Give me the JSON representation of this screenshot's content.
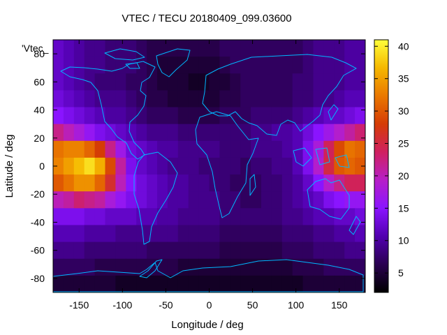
{
  "chart_data": {
    "type": "heatmap",
    "title": "VTEC / TECU 20180409_099.03600",
    "xlabel": "Longitude / deg",
    "ylabel": "Latitude / deg",
    "legend_label": "'Vtec_",
    "xlim": [
      -180,
      180
    ],
    "ylim": [
      -90,
      90
    ],
    "x_ticks": [
      -150,
      -100,
      -50,
      0,
      50,
      100,
      150
    ],
    "y_ticks": [
      -80,
      -60,
      -40,
      -20,
      0,
      20,
      40,
      60,
      80
    ],
    "colorbar": {
      "range": [
        2,
        41
      ],
      "ticks": [
        5,
        10,
        15,
        20,
        25,
        30,
        35,
        40
      ],
      "palette": [
        "#000000",
        "#2a0050",
        "#5200b0",
        "#8a14ff",
        "#b61fc8",
        "#d02060",
        "#d53c05",
        "#ea7800",
        "#f5b800",
        "#ffff3a"
      ]
    },
    "grid": {
      "lon_start": -180,
      "lat_start": 90,
      "step_deg": 12,
      "note": "values in TECU, rows from north (lat 90..78) to south",
      "values": [
        [
          12,
          11,
          10,
          9,
          9,
          8,
          8,
          8,
          7,
          6,
          6,
          6,
          6,
          6,
          6,
          6,
          7,
          7,
          7,
          7,
          7,
          7,
          7,
          7,
          8,
          9,
          9,
          9,
          10,
          10
        ],
        [
          12,
          11,
          10,
          9,
          9,
          8,
          8,
          8,
          7,
          6,
          5,
          5,
          5,
          5,
          5,
          5,
          6,
          7,
          7,
          7,
          7,
          7,
          7,
          7,
          8,
          9,
          9,
          9,
          10,
          10
        ],
        [
          12,
          11,
          10,
          9,
          8,
          8,
          8,
          7,
          7,
          6,
          5,
          5,
          5,
          4,
          4,
          5,
          5,
          6,
          7,
          7,
          7,
          7,
          7,
          8,
          8,
          9,
          9,
          9,
          10,
          10
        ],
        [
          13,
          12,
          11,
          10,
          9,
          9,
          9,
          8,
          7,
          6,
          6,
          5,
          5,
          5,
          5,
          5,
          6,
          6,
          7,
          7,
          7,
          7,
          7,
          8,
          8,
          9,
          9,
          10,
          11,
          11
        ],
        [
          15,
          14,
          13,
          12,
          11,
          10,
          10,
          9,
          8,
          7,
          7,
          7,
          6,
          6,
          6,
          6,
          7,
          7,
          7,
          8,
          8,
          8,
          8,
          9,
          10,
          11,
          12,
          12,
          13,
          14
        ],
        [
          22,
          20,
          18,
          16,
          14,
          13,
          12,
          11,
          10,
          9,
          9,
          9,
          8,
          8,
          8,
          8,
          8,
          8,
          8,
          9,
          9,
          10,
          10,
          11,
          13,
          15,
          17,
          19,
          21,
          23
        ],
        [
          32,
          33,
          33,
          31,
          28,
          22,
          17,
          13,
          12,
          11,
          10,
          10,
          9,
          9,
          9,
          9,
          8,
          8,
          8,
          9,
          9,
          9,
          10,
          11,
          14,
          18,
          24,
          29,
          32,
          31
        ],
        [
          33,
          35,
          37,
          39,
          36,
          29,
          21,
          14,
          12,
          11,
          10,
          9,
          9,
          9,
          8,
          8,
          8,
          8,
          7,
          8,
          8,
          9,
          9,
          11,
          14,
          19,
          25,
          30,
          31,
          30
        ],
        [
          30,
          32,
          34,
          34,
          31,
          26,
          20,
          15,
          13,
          12,
          11,
          10,
          10,
          9,
          9,
          8,
          8,
          7,
          7,
          7,
          8,
          8,
          9,
          10,
          12,
          15,
          19,
          22,
          24,
          24
        ],
        [
          20,
          21,
          23,
          22,
          21,
          18,
          16,
          14,
          13,
          12,
          11,
          10,
          10,
          9,
          9,
          9,
          8,
          8,
          7,
          7,
          8,
          8,
          9,
          10,
          11,
          12,
          14,
          15,
          16,
          16
        ],
        [
          14,
          14,
          14,
          13,
          13,
          12,
          12,
          12,
          11,
          11,
          10,
          10,
          9,
          9,
          9,
          9,
          8,
          8,
          8,
          8,
          8,
          8,
          9,
          9,
          10,
          11,
          11,
          12,
          12,
          13
        ],
        [
          11,
          11,
          11,
          10,
          10,
          10,
          9,
          9,
          9,
          9,
          9,
          9,
          8,
          8,
          8,
          8,
          7,
          7,
          7,
          7,
          7,
          7,
          8,
          8,
          8,
          9,
          9,
          10,
          10,
          11
        ],
        [
          9,
          9,
          9,
          8,
          8,
          8,
          8,
          8,
          8,
          7,
          7,
          7,
          7,
          7,
          7,
          7,
          6,
          6,
          6,
          6,
          6,
          6,
          7,
          7,
          7,
          8,
          8,
          8,
          9,
          9
        ],
        [
          7,
          7,
          7,
          7,
          6,
          6,
          6,
          6,
          6,
          6,
          6,
          6,
          5,
          5,
          5,
          5,
          5,
          5,
          5,
          5,
          5,
          5,
          5,
          6,
          6,
          6,
          7,
          7,
          7,
          7
        ],
        [
          5,
          5,
          5,
          5,
          5,
          5,
          4,
          4,
          4,
          4,
          4,
          4,
          4,
          4,
          4,
          4,
          4,
          4,
          4,
          4,
          4,
          4,
          4,
          4,
          5,
          5,
          5,
          5,
          5,
          5
        ]
      ]
    }
  }
}
